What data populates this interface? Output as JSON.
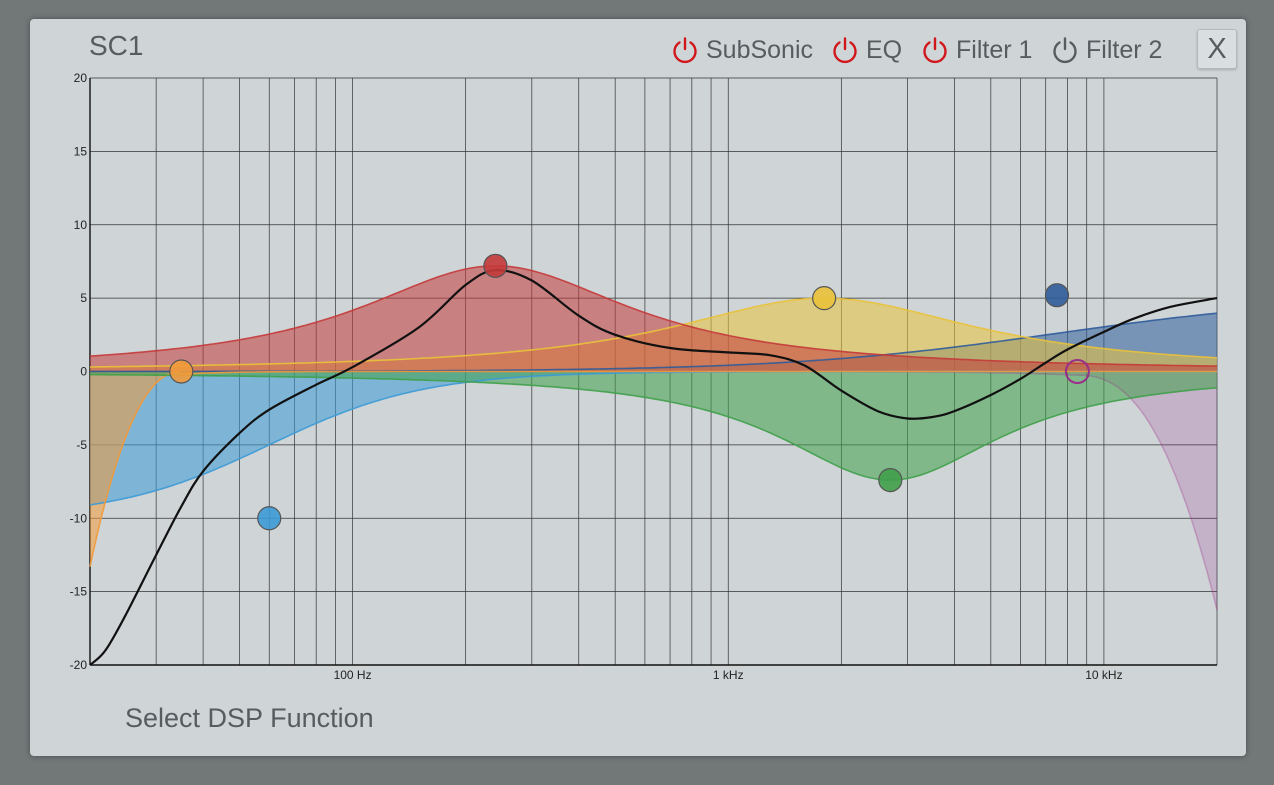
{
  "window": {
    "title": "SC1",
    "close_label": "X"
  },
  "toggles": [
    {
      "label": "SubSonic",
      "icon": "power-icon",
      "enabled": true
    },
    {
      "label": "EQ",
      "icon": "power-icon",
      "enabled": true
    },
    {
      "label": "Filter 1",
      "icon": "power-icon",
      "enabled": true
    },
    {
      "label": "Filter 2",
      "icon": "power-icon",
      "enabled": false
    }
  ],
  "footer": {
    "label": "Select DSP Function"
  },
  "colors": {
    "power_on": "#d0181c",
    "power_off": "#575c60",
    "band_orange": "#f29a3a",
    "band_lightblue": "#3c9ad6",
    "band_red": "#c43a3a",
    "band_yellow": "#e9c23a",
    "band_green": "#3fa04a",
    "band_darkblue": "#2f5c9a",
    "band_purple": "#9a2f8a",
    "response_curve": "#111111"
  },
  "chart_data": {
    "type": "area",
    "x_scale": "log",
    "xlim": [
      20,
      20000
    ],
    "ylim": [
      -20,
      20
    ],
    "grid": true,
    "yticks": [
      20,
      15,
      10,
      5,
      0,
      -5,
      -10,
      -15,
      -20
    ],
    "xtick_labels": [
      {
        "freq": 100,
        "label": "100 Hz"
      },
      {
        "freq": 1000,
        "label": "1 kHz"
      },
      {
        "freq": 10000,
        "label": "10 kHz"
      }
    ],
    "bands": [
      {
        "kind": "highpass",
        "freq": 35,
        "gain": 0,
        "color": "#f29a3a",
        "endpoint_db": -13.3
      },
      {
        "kind": "lowshelf",
        "freq": 60,
        "gain": -10,
        "q": 0.7,
        "color": "#3c9ad6"
      },
      {
        "kind": "peak",
        "freq": 240,
        "gain": 7.2,
        "q": 0.9,
        "color": "#c43a3a"
      },
      {
        "kind": "peak",
        "freq": 1800,
        "gain": 5,
        "q": 0.8,
        "color": "#e9c23a"
      },
      {
        "kind": "peak",
        "freq": 2700,
        "gain": -7.4,
        "q": 1.1,
        "color": "#3fa04a"
      },
      {
        "kind": "highshelf",
        "freq": 7500,
        "gain": 5.2,
        "q": 0.7,
        "color": "#2f5c9a"
      },
      {
        "kind": "lowpass",
        "freq": 8500,
        "gain": 0,
        "color": "#9a2f8a",
        "endpoint_db": -16
      }
    ],
    "response": {
      "x": [
        20,
        22,
        25,
        30,
        35,
        40,
        50,
        60,
        80,
        100,
        150,
        200,
        240,
        300,
        400,
        500,
        700,
        1000,
        1300,
        1600,
        2000,
        2500,
        3000,
        3500,
        4000,
        5000,
        6000,
        7000,
        8000,
        10000,
        12000,
        15000,
        20000
      ],
      "y": [
        -20,
        -19,
        -16.5,
        -12.5,
        -9.2,
        -6.8,
        -4.2,
        -2.6,
        -0.9,
        0.3,
        3,
        5.9,
        6.9,
        6.2,
        3.8,
        2.5,
        1.6,
        1.3,
        1.1,
        0.4,
        -1.3,
        -2.7,
        -3.2,
        -3.1,
        -2.7,
        -1.6,
        -0.5,
        0.6,
        1.5,
        2.7,
        3.6,
        4.4,
        5
      ]
    }
  }
}
